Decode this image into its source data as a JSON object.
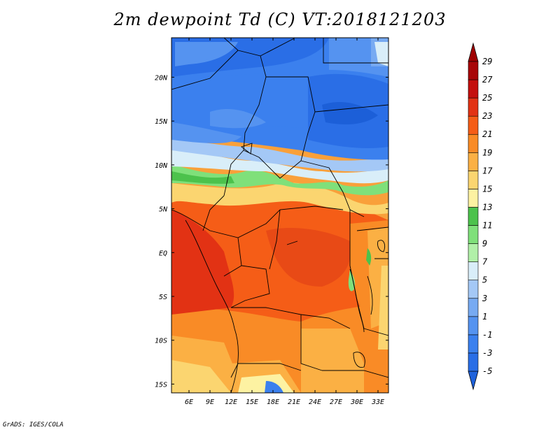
{
  "title": "2m dewpoint Td (C) VT:2018121203",
  "credit": "GrADS: IGES/COLA",
  "map": {
    "lon_range": [
      3.5,
      34.5
    ],
    "lat_range": [
      -16,
      24.5
    ],
    "lat_ticks": [
      {
        "value": 20,
        "label": "20N"
      },
      {
        "value": 15,
        "label": "15N"
      },
      {
        "value": 10,
        "label": "10N"
      },
      {
        "value": 5,
        "label": "5N"
      },
      {
        "value": 0,
        "label": "EQ"
      },
      {
        "value": -5,
        "label": "5S"
      },
      {
        "value": -10,
        "label": "10S"
      },
      {
        "value": -15,
        "label": "15S"
      }
    ],
    "lon_ticks": [
      {
        "value": 6,
        "label": "6E"
      },
      {
        "value": 9,
        "label": "9E"
      },
      {
        "value": 12,
        "label": "12E"
      },
      {
        "value": 15,
        "label": "15E"
      },
      {
        "value": 18,
        "label": "18E"
      },
      {
        "value": 21,
        "label": "21E"
      },
      {
        "value": 24,
        "label": "24E"
      },
      {
        "value": 27,
        "label": "27E"
      },
      {
        "value": 30,
        "label": "30E"
      },
      {
        "value": 33,
        "label": "33E"
      }
    ]
  },
  "colorbar": {
    "levels": [
      -5,
      -3,
      -1,
      1,
      3,
      5,
      7,
      9,
      11,
      13,
      15,
      17,
      19,
      21,
      23,
      25,
      27,
      29
    ],
    "labels": [
      "-5",
      "-3",
      "-1",
      "1",
      "3",
      "5",
      "7",
      "9",
      "11",
      "13",
      "15",
      "17",
      "19",
      "21",
      "23",
      "25",
      "27",
      "29"
    ],
    "colors": [
      "#1c5fd8",
      "#2a6ee6",
      "#3b80ee",
      "#5593f0",
      "#77aaf2",
      "#a4c8f6",
      "#d9eef9",
      "#b1f0a8",
      "#7fe07a",
      "#4cc24c",
      "#fdf2a2",
      "#fbd570",
      "#fbb044",
      "#f98b26",
      "#f55d17",
      "#e23214",
      "#c4100e",
      "#a80608"
    ],
    "low_arrow_color": "#1f62db",
    "high_arrow_color": "#a00000"
  }
}
